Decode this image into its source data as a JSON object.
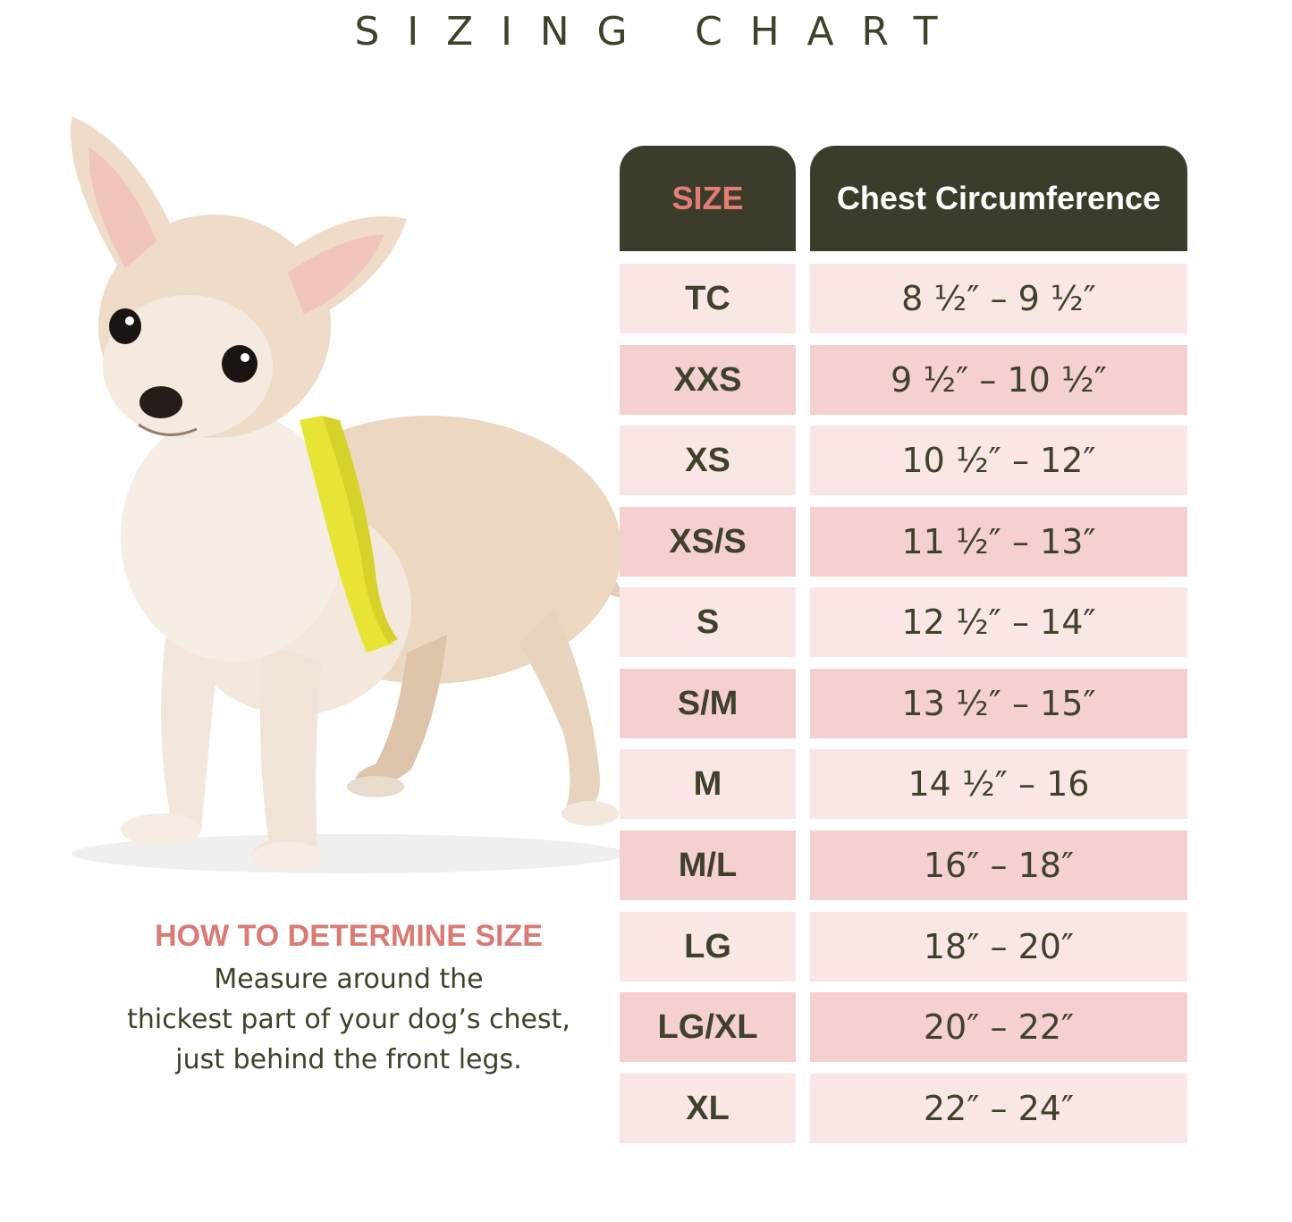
{
  "page": {
    "title": "SIZING CHART"
  },
  "howto": {
    "heading": "HOW TO DETERMINE SIZE",
    "lines": [
      "Measure around the",
      "thickest part of your dog’s chest,",
      "just behind the front legs."
    ]
  },
  "table": {
    "headers": {
      "size": "SIZE",
      "chest": "Chest Circumference"
    },
    "rows": [
      {
        "size": "TC",
        "chest": "8 ½″ – 9 ½″"
      },
      {
        "size": "XXS",
        "chest": "9 ½″ – 10 ½″"
      },
      {
        "size": "XS",
        "chest": "10 ½″ – 12″"
      },
      {
        "size": "XS/S",
        "chest": "11 ½″ – 13″"
      },
      {
        "size": "S",
        "chest": "12 ½″ – 14″"
      },
      {
        "size": "S/M",
        "chest": "13 ½″ – 15″"
      },
      {
        "size": "M",
        "chest": "14 ½″ – 16"
      },
      {
        "size": "M/L",
        "chest": "16″ – 18″"
      },
      {
        "size": "LG",
        "chest": "18″ – 20″"
      },
      {
        "size": "LG/XL",
        "chest": "20″ – 22″"
      },
      {
        "size": "XL",
        "chest": "22″ – 24″"
      }
    ]
  },
  "colors": {
    "header_bg": "#3c3c2a",
    "size_header_text": "#e27e76",
    "heading_accent": "#d97b74",
    "row_light": "#fae6e5",
    "row_dark": "#f5d0d0",
    "text": "#3f412b"
  },
  "illustration": {
    "subject": "chihuahua-puppy-with-measuring-tape"
  }
}
